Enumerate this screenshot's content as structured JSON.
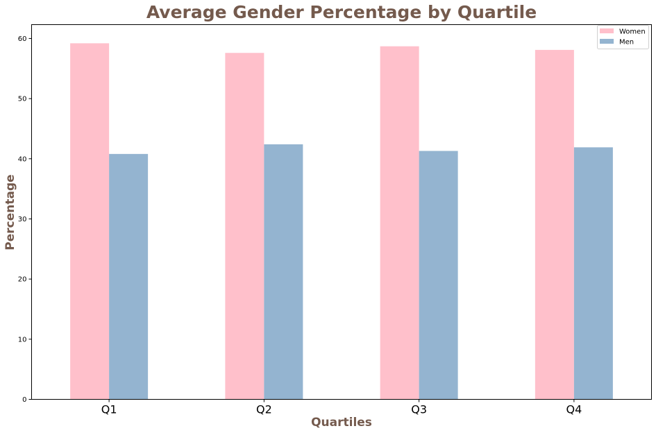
{
  "chart_data": {
    "type": "bar",
    "title": "Average Gender Percentage by Quartile",
    "xlabel": "Quartiles",
    "ylabel": "Percentage",
    "categories": [
      "Q1",
      "Q2",
      "Q3",
      "Q4"
    ],
    "series": [
      {
        "name": "Women",
        "values": [
          59.2,
          57.6,
          58.7,
          58.1
        ],
        "color": "#ffc0cb"
      },
      {
        "name": "Men",
        "values": [
          40.8,
          42.4,
          41.3,
          41.9
        ],
        "color": "#94b4d0"
      }
    ],
    "ylim": [
      0,
      62.3
    ],
    "yticks": [
      0,
      10,
      20,
      30,
      40,
      50,
      60
    ],
    "grid": false,
    "legend_position": "top-right",
    "label_color": "#745a4d"
  }
}
